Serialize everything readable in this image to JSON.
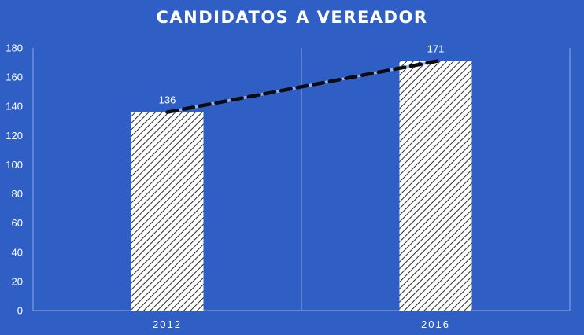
{
  "chart_data": {
    "type": "bar",
    "title": "CANDIDATOS A VEREADOR",
    "categories": [
      "2012",
      "2016"
    ],
    "values": [
      136,
      171
    ],
    "data_labels": [
      "136",
      "171"
    ],
    "ylim": [
      0,
      180
    ],
    "yticks": [
      "0",
      "20",
      "40",
      "60",
      "80",
      "100",
      "120",
      "140",
      "160",
      "180"
    ],
    "grid": "vertical category separators",
    "trendline": {
      "style": "dashed",
      "values": [
        136,
        171
      ]
    },
    "legend": "none",
    "colors": {
      "background": "#2F5FC4",
      "bar_fill": "#FFFFFF",
      "bar_hatch": "#2B2B2B",
      "trendline_outer": "#0B0B14",
      "trendline_inner": "#8FB3F0",
      "axis": "#8FA8E0",
      "text": "#FFFFFF"
    }
  }
}
